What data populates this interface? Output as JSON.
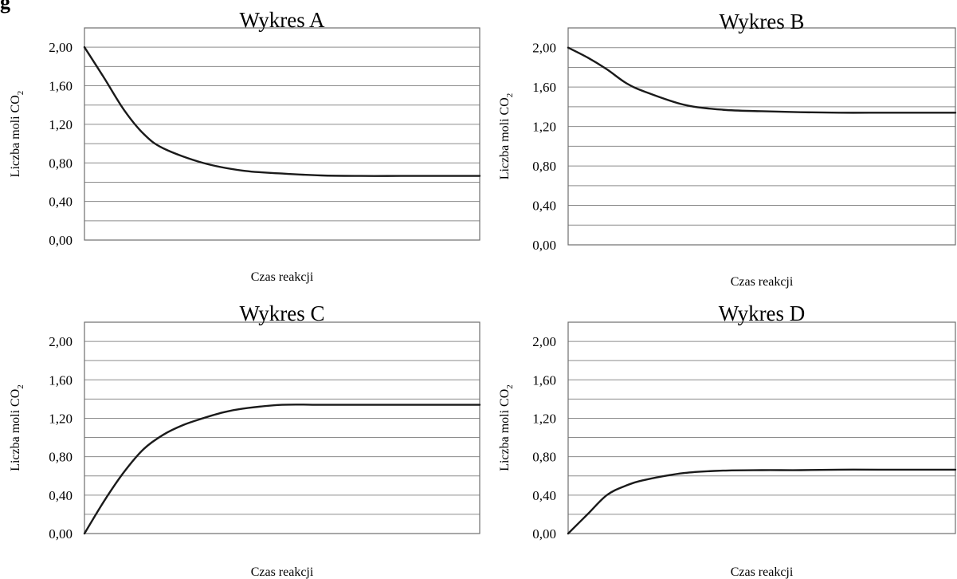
{
  "header_fragment": "g",
  "chart_data": [
    {
      "type": "line",
      "title": "Wykres A",
      "xlabel": "Czas reakcji",
      "ylabel_main": "Liczba  moli CO",
      "ylabel_sub": "2",
      "ylim": [
        0,
        2.2
      ],
      "xlim": [
        0,
        1
      ],
      "yticks": [
        "0,00",
        "0,40",
        "0,80",
        "1,20",
        "1,60",
        "2,00"
      ],
      "grid": true,
      "series": [
        {
          "x": [
            0,
            0.05,
            0.1,
            0.15,
            0.2,
            0.3,
            0.4,
            0.5,
            0.6,
            0.7,
            0.8,
            0.9,
            1.0
          ],
          "y": [
            2.0,
            1.68,
            1.35,
            1.1,
            0.95,
            0.8,
            0.72,
            0.69,
            0.67,
            0.665,
            0.665,
            0.665,
            0.665
          ]
        }
      ]
    },
    {
      "type": "line",
      "title": "Wykres B",
      "xlabel": "Czas reakcji",
      "ylabel_main": "Liczba moli CO",
      "ylabel_sub": "2",
      "ylim": [
        0,
        2.2
      ],
      "xlim": [
        0,
        1
      ],
      "yticks": [
        "0,00",
        "0,40",
        "0,80",
        "1,20",
        "1,60",
        "2,00"
      ],
      "grid": true,
      "series": [
        {
          "x": [
            0,
            0.05,
            0.1,
            0.15,
            0.2,
            0.3,
            0.4,
            0.5,
            0.6,
            0.7,
            0.8,
            0.9,
            1.0
          ],
          "y": [
            2.0,
            1.9,
            1.78,
            1.64,
            1.55,
            1.42,
            1.37,
            1.355,
            1.345,
            1.34,
            1.34,
            1.34,
            1.34
          ]
        }
      ]
    },
    {
      "type": "line",
      "title": "Wykres C",
      "xlabel": "Czas reakcji",
      "ylabel_main": "Liczba moli CO",
      "ylabel_sub": "2",
      "ylim": [
        0,
        2.2
      ],
      "xlim": [
        0,
        1
      ],
      "yticks": [
        "0,00",
        "0,40",
        "0,80",
        "1,20",
        "1,60",
        "2,00"
      ],
      "grid": true,
      "series": [
        {
          "x": [
            0,
            0.05,
            0.1,
            0.15,
            0.2,
            0.25,
            0.3,
            0.35,
            0.4,
            0.5,
            0.6,
            0.7,
            0.8,
            0.9,
            1.0
          ],
          "y": [
            0.0,
            0.34,
            0.64,
            0.88,
            1.03,
            1.13,
            1.2,
            1.26,
            1.3,
            1.34,
            1.34,
            1.34,
            1.34,
            1.34,
            1.34
          ]
        }
      ]
    },
    {
      "type": "line",
      "title": "Wykres D",
      "xlabel": "Czas reakcji",
      "ylabel_main": "Liczba moli CO",
      "ylabel_sub": "2",
      "ylim": [
        0,
        2.2
      ],
      "xlim": [
        0,
        1
      ],
      "yticks": [
        "0,00",
        "0,40",
        "0,80",
        "1,20",
        "1,60",
        "2,00"
      ],
      "grid": true,
      "series": [
        {
          "x": [
            0,
            0.05,
            0.1,
            0.15,
            0.2,
            0.3,
            0.4,
            0.5,
            0.6,
            0.7,
            0.8,
            0.9,
            1.0
          ],
          "y": [
            0.0,
            0.2,
            0.4,
            0.5,
            0.56,
            0.63,
            0.655,
            0.66,
            0.66,
            0.665,
            0.665,
            0.665,
            0.665
          ]
        }
      ]
    }
  ]
}
